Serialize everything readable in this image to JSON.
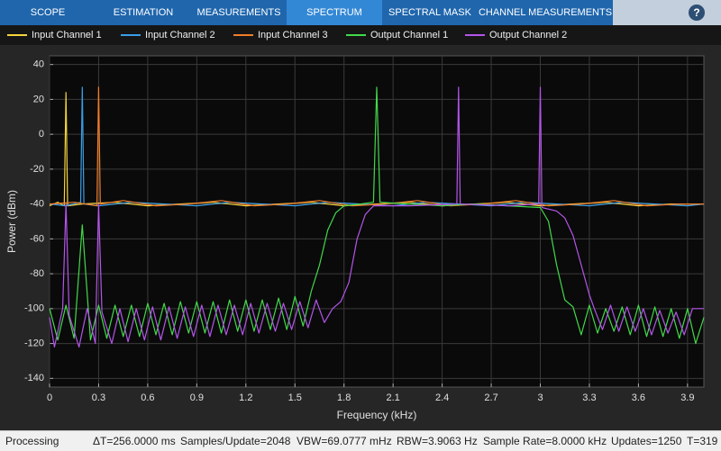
{
  "toolbar": {
    "tabs": [
      "SCOPE",
      "ESTIMATION",
      "MEASUREMENTS",
      "SPECTRUM",
      "SPECTRAL MASK",
      "CHANNEL MEASUREMENTS"
    ],
    "help": "?"
  },
  "status": {
    "state": "Processing",
    "items": [
      "ΔT=256.0000 ms",
      "Samples/Update=2048",
      "VBW=69.0777 mHz",
      "RBW=3.9063 Hz",
      "Sample Rate=8.0000 kHz",
      "Updates=1250",
      "T=319"
    ]
  },
  "chart_data": {
    "type": "line",
    "x_label": "Frequency (kHz)",
    "y_label": "Power (dBm)",
    "grid": true,
    "legend": "top",
    "xlim": [
      0,
      4
    ],
    "ylim": [
      -145,
      45
    ],
    "xticks": [
      0,
      0.3,
      0.6,
      0.9,
      1.2,
      1.5,
      1.8,
      2.1,
      2.4,
      2.7,
      3,
      3.3,
      3.6,
      3.9
    ],
    "yticks": [
      -140,
      -120,
      -100,
      -80,
      -60,
      -40,
      -20,
      0,
      20,
      40
    ],
    "series": [
      {
        "name": "Input Channel 1",
        "color": "#f5d33c",
        "x": [
          0,
          0.05,
          0.09,
          0.1,
          0.11,
          0.2,
          0.4,
          0.6,
          0.8,
          1.0,
          1.2,
          1.4,
          1.6,
          1.8,
          2.0,
          2.2,
          2.4,
          2.6,
          2.8,
          3.0,
          3.2,
          3.4,
          3.6,
          3.8,
          4.0
        ],
        "values": [
          -41,
          -39,
          -41,
          24,
          -41,
          -40,
          -39,
          -41,
          -40,
          -39,
          -41,
          -40,
          -39,
          -41,
          -40,
          -39,
          -41,
          -40,
          -39,
          -41,
          -40,
          -39,
          -41,
          -40,
          -40
        ]
      },
      {
        "name": "Input Channel 2",
        "color": "#3a9ee6",
        "x": [
          0,
          0.1,
          0.19,
          0.2,
          0.21,
          0.3,
          0.5,
          0.7,
          0.9,
          1.1,
          1.3,
          1.5,
          1.7,
          1.9,
          2.1,
          2.3,
          2.5,
          2.7,
          2.9,
          3.1,
          3.3,
          3.5,
          3.7,
          3.9,
          4.0
        ],
        "values": [
          -40,
          -41,
          -39,
          27,
          -40,
          -41,
          -39,
          -40,
          -41,
          -39,
          -40,
          -41,
          -39,
          -40,
          -41,
          -39,
          -40,
          -41,
          -39,
          -40,
          -41,
          -39,
          -40,
          -41,
          -40
        ]
      },
      {
        "name": "Input Channel 3",
        "color": "#f07d2a",
        "x": [
          0,
          0.15,
          0.29,
          0.3,
          0.31,
          0.45,
          0.65,
          0.85,
          1.05,
          1.25,
          1.45,
          1.65,
          1.85,
          2.05,
          2.25,
          2.45,
          2.65,
          2.85,
          3.05,
          3.25,
          3.45,
          3.65,
          3.85,
          4.0
        ],
        "values": [
          -40,
          -39,
          -41,
          27,
          -40,
          -38,
          -41,
          -40,
          -38,
          -41,
          -40,
          -38,
          -41,
          -40,
          -38,
          -41,
          -40,
          -38,
          -41,
          -40,
          -38,
          -41,
          -40,
          -40
        ]
      },
      {
        "name": "Output Channel 1",
        "color": "#42d94a",
        "x": [
          0,
          0.05,
          0.1,
          0.15,
          0.2,
          0.25,
          0.3,
          0.35,
          0.4,
          0.45,
          0.5,
          0.55,
          0.6,
          0.65,
          0.7,
          0.75,
          0.8,
          0.85,
          0.9,
          0.95,
          1.0,
          1.05,
          1.1,
          1.15,
          1.2,
          1.25,
          1.3,
          1.35,
          1.4,
          1.45,
          1.5,
          1.55,
          1.6,
          1.65,
          1.7,
          1.75,
          1.8,
          1.9,
          1.98,
          2.0,
          2.02,
          2.2,
          2.4,
          2.6,
          2.8,
          3.0,
          3.05,
          3.1,
          3.15,
          3.2,
          3.25,
          3.3,
          3.35,
          3.4,
          3.45,
          3.5,
          3.55,
          3.6,
          3.65,
          3.7,
          3.75,
          3.8,
          3.85,
          3.9,
          3.95,
          4.0
        ],
        "values": [
          -100,
          -118,
          -98,
          -117,
          -52,
          -118,
          -98,
          -117,
          -98,
          -116,
          -98,
          -116,
          -97,
          -115,
          -97,
          -115,
          -96,
          -114,
          -96,
          -114,
          -96,
          -114,
          -95,
          -113,
          -95,
          -113,
          -95,
          -112,
          -94,
          -112,
          -93,
          -110,
          -90,
          -75,
          -55,
          -45,
          -41,
          -40,
          -39,
          27,
          -39,
          -40,
          -41,
          -40,
          -41,
          -42,
          -50,
          -75,
          -95,
          -99,
          -115,
          -98,
          -114,
          -100,
          -113,
          -99,
          -115,
          -98,
          -116,
          -99,
          -116,
          -100,
          -117,
          -100,
          -120,
          -105
        ]
      },
      {
        "name": "Output Channel 2",
        "color": "#b455ea",
        "x": [
          0,
          0.03,
          0.08,
          0.1,
          0.12,
          0.18,
          0.23,
          0.28,
          0.3,
          0.32,
          0.38,
          0.43,
          0.48,
          0.53,
          0.58,
          0.63,
          0.68,
          0.73,
          0.78,
          0.83,
          0.88,
          0.93,
          0.98,
          1.03,
          1.08,
          1.13,
          1.18,
          1.23,
          1.28,
          1.33,
          1.38,
          1.43,
          1.48,
          1.53,
          1.58,
          1.63,
          1.68,
          1.73,
          1.78,
          1.83,
          1.88,
          1.93,
          1.98,
          2.2,
          2.49,
          2.5,
          2.51,
          2.8,
          2.99,
          3.0,
          3.01,
          3.1,
          3.15,
          3.2,
          3.25,
          3.3,
          3.33,
          3.38,
          3.43,
          3.48,
          3.53,
          3.58,
          3.63,
          3.68,
          3.73,
          3.78,
          3.83,
          3.88,
          3.93,
          4.0
        ],
        "values": [
          -105,
          -122,
          -100,
          -40,
          -104,
          -122,
          -100,
          -120,
          -40,
          -102,
          -120,
          -100,
          -119,
          -100,
          -118,
          -99,
          -118,
          -99,
          -117,
          -99,
          -116,
          -98,
          -116,
          -98,
          -115,
          -98,
          -115,
          -97,
          -114,
          -97,
          -113,
          -97,
          -112,
          -96,
          -111,
          -95,
          -108,
          -100,
          -96,
          -85,
          -60,
          -46,
          -41,
          -41,
          -40,
          27,
          -40,
          -41,
          -40,
          27,
          -42,
          -44,
          -48,
          -58,
          -75,
          -92,
          -100,
          -112,
          -98,
          -113,
          -99,
          -113,
          -100,
          -115,
          -101,
          -114,
          -102,
          -115,
          -100,
          -100
        ]
      }
    ]
  }
}
